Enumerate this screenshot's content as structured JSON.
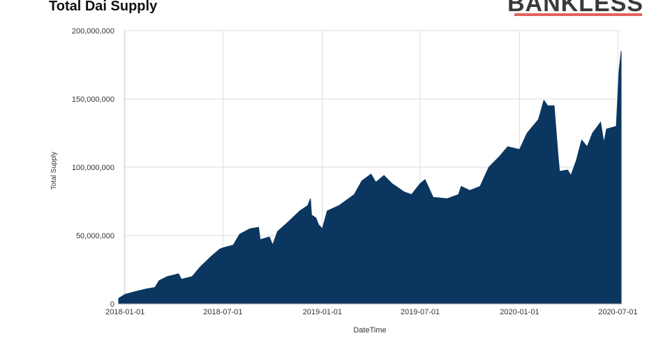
{
  "chart_data": {
    "type": "area",
    "title": "Total Dai Supply",
    "logo": "BANKLESS",
    "x_label": "DateTime",
    "y_label": "Total Supply",
    "color": "#0b3660",
    "grid": true,
    "xlim": [
      "2017-12-20",
      "2020-07-07"
    ],
    "xticks": [
      "2018-01-01",
      "2018-07-01",
      "2019-01-01",
      "2019-07-01",
      "2020-01-01",
      "2020-07-01"
    ],
    "ylim": [
      0,
      200000000
    ],
    "yticks": [
      0,
      {
        "value": 50000000,
        "label": "50,000,000"
      },
      {
        "value": 100000000,
        "label": "100,000,000"
      },
      {
        "value": 150000000,
        "label": "150,000,000"
      },
      {
        "value": 200000000,
        "label": "200,000,000"
      }
    ],
    "x": [
      "2017-12-20",
      "2018-01-01",
      "2018-01-20",
      "2018-02-10",
      "2018-02-25",
      "2018-03-05",
      "2018-03-20",
      "2018-04-10",
      "2018-04-15",
      "2018-05-05",
      "2018-05-20",
      "2018-06-10",
      "2018-06-25",
      "2018-07-01",
      "2018-07-20",
      "2018-08-01",
      "2018-08-20",
      "2018-09-05",
      "2018-09-08",
      "2018-09-25",
      "2018-10-01",
      "2018-10-10",
      "2018-10-30",
      "2018-11-20",
      "2018-12-05",
      "2018-12-10",
      "2018-12-12",
      "2018-12-20",
      "2018-12-25",
      "2019-01-01",
      "2019-01-10",
      "2019-02-01",
      "2019-03-01",
      "2019-03-15",
      "2019-04-01",
      "2019-04-10",
      "2019-04-25",
      "2019-05-10",
      "2019-05-25",
      "2019-06-01",
      "2019-06-15",
      "2019-07-01",
      "2019-07-10",
      "2019-07-25",
      "2019-08-20",
      "2019-09-10",
      "2019-09-15",
      "2019-10-01",
      "2019-10-20",
      "2019-11-05",
      "2019-11-25",
      "2019-12-10",
      "2020-01-01",
      "2020-01-15",
      "2020-02-05",
      "2020-02-15",
      "2020-02-22",
      "2020-03-05",
      "2020-03-12",
      "2020-03-15",
      "2020-03-30",
      "2020-04-05",
      "2020-04-15",
      "2020-04-25",
      "2020-05-05",
      "2020-05-15",
      "2020-05-30",
      "2020-06-05",
      "2020-06-10",
      "2020-06-28",
      "2020-07-03",
      "2020-07-07"
    ],
    "values": [
      4000000,
      7000000,
      9000000,
      11000000,
      12000000,
      17000000,
      20000000,
      22000000,
      18000000,
      20000000,
      27000000,
      35000000,
      40000000,
      41000000,
      43000000,
      51000000,
      55000000,
      56000000,
      47000000,
      49000000,
      43000000,
      53000000,
      60000000,
      68000000,
      72000000,
      77000000,
      65000000,
      63000000,
      58000000,
      55000000,
      68000000,
      72000000,
      80000000,
      90000000,
      95000000,
      89000000,
      94000000,
      88000000,
      84000000,
      82000000,
      80000000,
      88000000,
      91000000,
      78000000,
      77000000,
      80000000,
      86000000,
      83000000,
      86000000,
      100000000,
      108000000,
      115000000,
      113000000,
      125000000,
      135000000,
      149000000,
      145000000,
      145000000,
      110000000,
      97000000,
      98000000,
      94000000,
      105000000,
      120000000,
      115000000,
      125000000,
      133000000,
      118000000,
      128000000,
      130000000,
      170000000,
      185000000
    ]
  }
}
